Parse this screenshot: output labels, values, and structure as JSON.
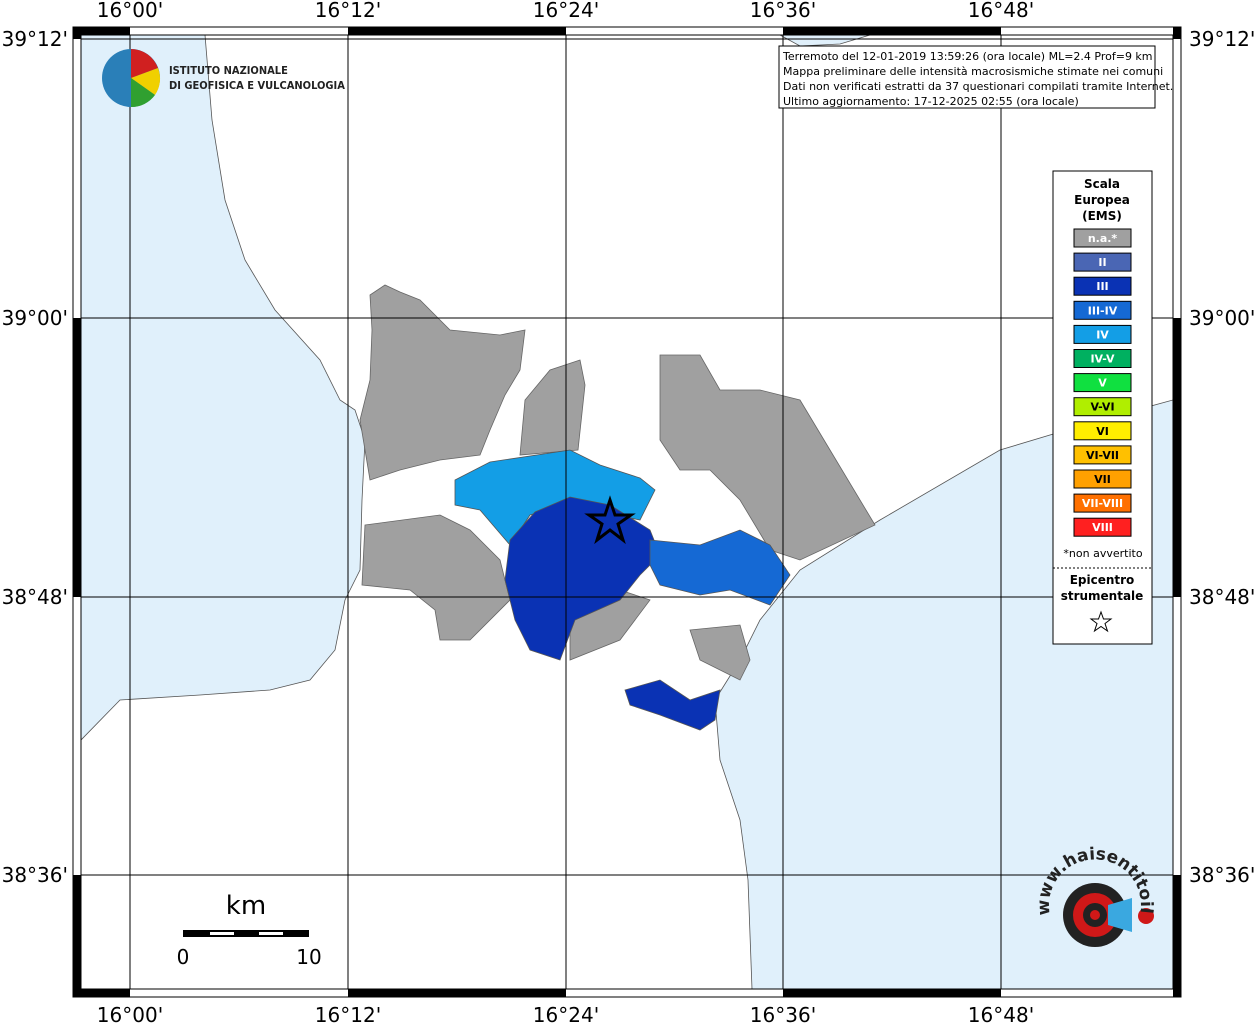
{
  "map": {
    "lon_labels": [
      "16°00'",
      "16°12'",
      "16°24'",
      "16°36'",
      "16°48'"
    ],
    "lat_labels": [
      "39°12'",
      "39°00'",
      "38°48'",
      "38°36'"
    ],
    "logo": [
      "ISTITUTO NAZIONALE",
      "DI GEOFISICA E VULCANOLOGIA"
    ],
    "info": [
      "Terremoto del 12-01-2019 13:59:26 (ora locale) ML=2.4 Prof=9 km",
      "Mappa preliminare delle intensità macrosismiche stimate nei comuni",
      "Dati non verificati estratti da 37 questionari compilati tramite Internet.",
      "Ultimo aggiornamento: 17-12-2025 02:55 (ora locale)"
    ],
    "legend": {
      "title": [
        "Scala",
        "Europea",
        "(EMS)"
      ],
      "items": [
        {
          "label": "n.a.*",
          "color": "#a0a0a0"
        },
        {
          "label": "II",
          "color": "#4a66b4"
        },
        {
          "label": "III",
          "color": "#0a32b4"
        },
        {
          "label": "III-IV",
          "color": "#1569d4"
        },
        {
          "label": "IV",
          "color": "#139ee6"
        },
        {
          "label": "IV-V",
          "color": "#00b060"
        },
        {
          "label": "V",
          "color": "#10e040"
        },
        {
          "label": "V-VI",
          "color": "#b0ee00"
        },
        {
          "label": "VI",
          "color": "#ffee00"
        },
        {
          "label": "VI-VII",
          "color": "#ffc000"
        },
        {
          "label": "VII",
          "color": "#ffa000"
        },
        {
          "label": "VII-VIII",
          "color": "#ff7000"
        },
        {
          "label": "VIII",
          "color": "#ff2020"
        }
      ],
      "note": "*non avvertito",
      "epicentre": [
        "Epicentro",
        "strumentale"
      ]
    },
    "scale": {
      "unit": "km",
      "labels": [
        0,
        10
      ]
    },
    "badge": "www.haisentitoilterremoto.it"
  }
}
